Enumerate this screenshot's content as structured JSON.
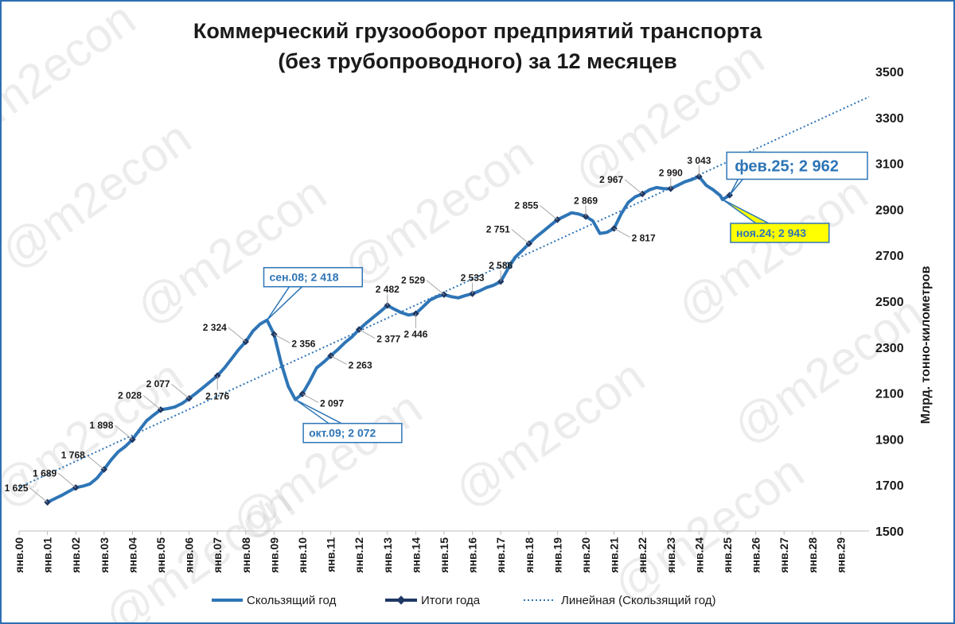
{
  "watermark": "@m2econ",
  "chart_data": {
    "type": "line",
    "title": [
      "Коммерческий грузооборот предприятий транспорта",
      "(без трубопроводного) за 12 месяцев"
    ],
    "ylabel": "Млрд. тонно-километров",
    "xlabel": "",
    "ylim": [
      1500,
      3500
    ],
    "y_ticks": [
      1500,
      1700,
      1900,
      2100,
      2300,
      2500,
      2700,
      2900,
      3100,
      3300,
      3500
    ],
    "y_axis_position": "right",
    "x_range": [
      2000,
      2030
    ],
    "x_tick_labels": [
      "янв.00",
      "янв.01",
      "янв.02",
      "янв.03",
      "янв.04",
      "янв.05",
      "янв.06",
      "янв.07",
      "янв.08",
      "янв.09",
      "янв.10",
      "янв.11",
      "янв.12",
      "янв.13",
      "янв.14",
      "янв.15",
      "янв.16",
      "янв.17",
      "янв.18",
      "янв.19",
      "янв.20",
      "янв.21",
      "янв.22",
      "янв.23",
      "янв.24",
      "янв.25",
      "янв.26",
      "янв.27",
      "янв.28",
      "янв.29"
    ],
    "grid": false,
    "legend_position": "bottom",
    "series": [
      {
        "name": "Скользящий год",
        "style": "solid",
        "color": "#2e75b6",
        "points": [
          [
            2001.0,
            1625
          ],
          [
            2001.25,
            1640
          ],
          [
            2001.5,
            1655
          ],
          [
            2001.75,
            1672
          ],
          [
            2002.0,
            1689
          ],
          [
            2002.25,
            1695
          ],
          [
            2002.5,
            1705
          ],
          [
            2002.75,
            1730
          ],
          [
            2003.0,
            1768
          ],
          [
            2003.25,
            1810
          ],
          [
            2003.5,
            1845
          ],
          [
            2003.75,
            1868
          ],
          [
            2004.0,
            1898
          ],
          [
            2004.25,
            1940
          ],
          [
            2004.5,
            1980
          ],
          [
            2004.75,
            2005
          ],
          [
            2005.0,
            2028
          ],
          [
            2005.25,
            2033
          ],
          [
            2005.5,
            2040
          ],
          [
            2005.75,
            2055
          ],
          [
            2006.0,
            2077
          ],
          [
            2006.25,
            2100
          ],
          [
            2006.5,
            2125
          ],
          [
            2006.75,
            2150
          ],
          [
            2007.0,
            2176
          ],
          [
            2007.25,
            2210
          ],
          [
            2007.5,
            2250
          ],
          [
            2007.75,
            2290
          ],
          [
            2008.0,
            2324
          ],
          [
            2008.25,
            2370
          ],
          [
            2008.5,
            2400
          ],
          [
            2008.75,
            2418
          ],
          [
            2009.0,
            2356
          ],
          [
            2009.25,
            2230
          ],
          [
            2009.5,
            2130
          ],
          [
            2009.75,
            2072
          ],
          [
            2010.0,
            2097
          ],
          [
            2010.25,
            2150
          ],
          [
            2010.5,
            2210
          ],
          [
            2010.75,
            2235
          ],
          [
            2011.0,
            2263
          ],
          [
            2011.25,
            2290
          ],
          [
            2011.5,
            2320
          ],
          [
            2011.75,
            2345
          ],
          [
            2012.0,
            2377
          ],
          [
            2012.25,
            2405
          ],
          [
            2012.5,
            2430
          ],
          [
            2012.75,
            2455
          ],
          [
            2013.0,
            2482
          ],
          [
            2013.25,
            2465
          ],
          [
            2013.5,
            2450
          ],
          [
            2013.75,
            2440
          ],
          [
            2014.0,
            2446
          ],
          [
            2014.25,
            2475
          ],
          [
            2014.5,
            2505
          ],
          [
            2014.75,
            2520
          ],
          [
            2015.0,
            2529
          ],
          [
            2015.25,
            2520
          ],
          [
            2015.5,
            2515
          ],
          [
            2015.75,
            2525
          ],
          [
            2016.0,
            2533
          ],
          [
            2016.25,
            2545
          ],
          [
            2016.5,
            2560
          ],
          [
            2016.75,
            2570
          ],
          [
            2017.0,
            2586
          ],
          [
            2017.25,
            2640
          ],
          [
            2017.5,
            2690
          ],
          [
            2017.75,
            2720
          ],
          [
            2018.0,
            2751
          ],
          [
            2018.25,
            2780
          ],
          [
            2018.5,
            2805
          ],
          [
            2018.75,
            2830
          ],
          [
            2019.0,
            2855
          ],
          [
            2019.25,
            2870
          ],
          [
            2019.5,
            2885
          ],
          [
            2019.75,
            2880
          ],
          [
            2020.0,
            2869
          ],
          [
            2020.25,
            2850
          ],
          [
            2020.5,
            2795
          ],
          [
            2020.75,
            2800
          ],
          [
            2021.0,
            2817
          ],
          [
            2021.25,
            2880
          ],
          [
            2021.5,
            2930
          ],
          [
            2021.75,
            2955
          ],
          [
            2022.0,
            2967
          ],
          [
            2022.25,
            2985
          ],
          [
            2022.5,
            2995
          ],
          [
            2022.75,
            2990
          ],
          [
            2023.0,
            2990
          ],
          [
            2023.25,
            3005
          ],
          [
            2023.5,
            3020
          ],
          [
            2023.75,
            3030
          ],
          [
            2024.0,
            3043
          ],
          [
            2024.25,
            3005
          ],
          [
            2024.5,
            2985
          ],
          [
            2024.75,
            2960
          ],
          [
            2024.83,
            2943
          ],
          [
            2025.08,
            2962
          ]
        ]
      },
      {
        "name": "Итоги года",
        "style": "markers",
        "color": "#1f3864",
        "points": [
          [
            2001.0,
            1625
          ],
          [
            2002.0,
            1689
          ],
          [
            2003.0,
            1768
          ],
          [
            2004.0,
            1898
          ],
          [
            2005.0,
            2028
          ],
          [
            2006.0,
            2077
          ],
          [
            2007.0,
            2176
          ],
          [
            2008.0,
            2324
          ],
          [
            2009.0,
            2356
          ],
          [
            2010.0,
            2097
          ],
          [
            2011.0,
            2263
          ],
          [
            2012.0,
            2377
          ],
          [
            2013.0,
            2482
          ],
          [
            2014.0,
            2446
          ],
          [
            2015.0,
            2529
          ],
          [
            2016.0,
            2533
          ],
          [
            2017.0,
            2586
          ],
          [
            2018.0,
            2751
          ],
          [
            2019.0,
            2855
          ],
          [
            2020.0,
            2869
          ],
          [
            2021.0,
            2817
          ],
          [
            2022.0,
            2967
          ],
          [
            2023.0,
            2990
          ],
          [
            2024.0,
            3043
          ],
          [
            2025.08,
            2962
          ]
        ]
      },
      {
        "name": "Линейная (Скользящий год)",
        "style": "dotted",
        "color": "#2e75b6",
        "points": [
          [
            2000.0,
            1690
          ],
          [
            2030.0,
            3390
          ]
        ]
      }
    ],
    "data_labels": [
      {
        "x": 2001.0,
        "y": 1625,
        "text": "1 625",
        "side": "left"
      },
      {
        "x": 2002.0,
        "y": 1689,
        "text": "1 689",
        "side": "left"
      },
      {
        "x": 2003.0,
        "y": 1768,
        "text": "1 768",
        "side": "left"
      },
      {
        "x": 2004.0,
        "y": 1898,
        "text": "1 898",
        "side": "left"
      },
      {
        "x": 2005.0,
        "y": 2028,
        "text": "2 028",
        "side": "left"
      },
      {
        "x": 2006.0,
        "y": 2077,
        "text": "2 077",
        "side": "left"
      },
      {
        "x": 2007.0,
        "y": 2176,
        "text": "2 176",
        "side": "below"
      },
      {
        "x": 2008.0,
        "y": 2324,
        "text": "2 324",
        "side": "left"
      },
      {
        "x": 2009.0,
        "y": 2356,
        "text": "2 356",
        "side": "right"
      },
      {
        "x": 2010.0,
        "y": 2097,
        "text": "2 097",
        "side": "right"
      },
      {
        "x": 2011.0,
        "y": 2263,
        "text": "2 263",
        "side": "right"
      },
      {
        "x": 2012.0,
        "y": 2377,
        "text": "2 377",
        "side": "right"
      },
      {
        "x": 2013.0,
        "y": 2482,
        "text": "2 482",
        "side": "above"
      },
      {
        "x": 2014.0,
        "y": 2446,
        "text": "2 446",
        "side": "below"
      },
      {
        "x": 2015.0,
        "y": 2529,
        "text": "2 529",
        "side": "left"
      },
      {
        "x": 2016.0,
        "y": 2533,
        "text": "2 533",
        "side": "above"
      },
      {
        "x": 2017.0,
        "y": 2586,
        "text": "2 586",
        "side": "above"
      },
      {
        "x": 2018.0,
        "y": 2751,
        "text": "2 751",
        "side": "left"
      },
      {
        "x": 2019.0,
        "y": 2855,
        "text": "2 855",
        "side": "left"
      },
      {
        "x": 2020.0,
        "y": 2869,
        "text": "2 869",
        "side": "above"
      },
      {
        "x": 2021.0,
        "y": 2817,
        "text": "2 817",
        "side": "right"
      },
      {
        "x": 2022.0,
        "y": 2967,
        "text": "2 967",
        "side": "left"
      },
      {
        "x": 2023.0,
        "y": 2990,
        "text": "2 990",
        "side": "above"
      },
      {
        "x": 2024.0,
        "y": 3043,
        "text": "3 043",
        "side": "above"
      }
    ],
    "callouts": [
      {
        "x": 2008.75,
        "y": 2418,
        "text": "сен.08;  2 418",
        "style": "box-blue",
        "anchor": "above"
      },
      {
        "x": 2009.75,
        "y": 2072,
        "text": "окт.09;  2 072",
        "style": "box-blue",
        "anchor": "below"
      },
      {
        "x": 2024.83,
        "y": 2943,
        "text": "ноя.24;  2 943",
        "style": "box-yellow",
        "anchor": "below"
      },
      {
        "x": 2025.08,
        "y": 2962,
        "text": "фев.25;  2 962",
        "style": "box-blue-large",
        "anchor": "right"
      }
    ]
  }
}
